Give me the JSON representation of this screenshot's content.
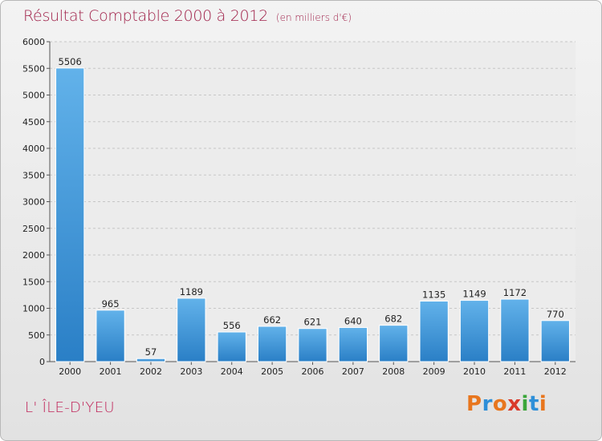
{
  "title": "Résultat Comptable 2000 à 2012",
  "subtitle": "(en milliers d'€)",
  "commune": "L' ÎLE-D'YEU",
  "logo": {
    "letters": [
      "P",
      "r",
      "o",
      "x",
      "i",
      "t",
      "i"
    ],
    "colors": [
      "#e8761e",
      "#2e8fd8",
      "#e8761e",
      "#d93a2b",
      "#3aa63a",
      "#2e8fd8",
      "#e8761e"
    ]
  },
  "colors": {
    "title": "#a0224a",
    "bar_top": "#62b2ea",
    "bar_bottom": "#2a7fc6",
    "grid": "#c6c6c6"
  },
  "chart_data": {
    "type": "bar",
    "categories": [
      "2000",
      "2001",
      "2002",
      "2003",
      "2004",
      "2005",
      "2006",
      "2007",
      "2008",
      "2009",
      "2010",
      "2011",
      "2012"
    ],
    "values": [
      5506,
      965,
      57,
      1189,
      556,
      662,
      621,
      640,
      682,
      1135,
      1149,
      1172,
      770
    ],
    "ylim": [
      0,
      6000
    ],
    "yticks": [
      0,
      500,
      1000,
      1500,
      2000,
      2500,
      3000,
      3500,
      4000,
      4500,
      5000,
      5500,
      6000
    ],
    "grid": true,
    "data_labels": true
  }
}
